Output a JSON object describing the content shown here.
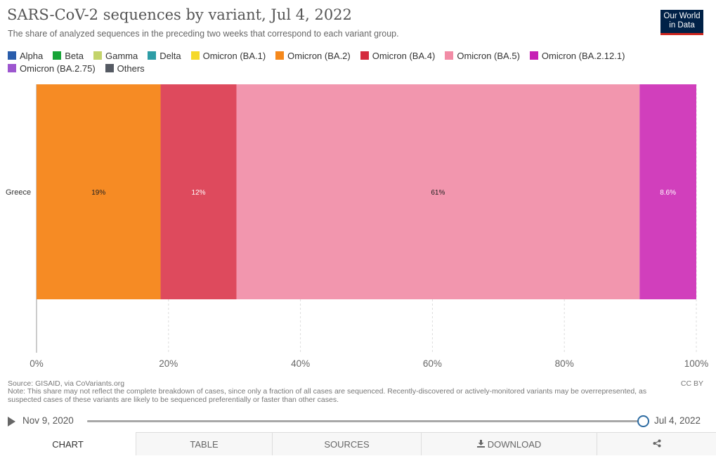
{
  "header": {
    "title": "SARS-CoV-2 sequences by variant, Jul 4, 2022",
    "subtitle": "The share of analyzed sequences in the preceding two weeks that correspond to each variant group.",
    "logo_line1": "Our World",
    "logo_line2": "in Data"
  },
  "legend": [
    {
      "label": "Alpha",
      "color": "#2a5dab"
    },
    {
      "label": "Beta",
      "color": "#17a437"
    },
    {
      "label": "Gamma",
      "color": "#c3d36a"
    },
    {
      "label": "Delta",
      "color": "#2d9da6"
    },
    {
      "label": "Omicron (BA.1)",
      "color": "#f5d92b"
    },
    {
      "label": "Omicron (BA.2)",
      "color": "#f5881b"
    },
    {
      "label": "Omicron (BA.4)",
      "color": "#d42a3d"
    },
    {
      "label": "Omicron (BA.5)",
      "color": "#f28ca6"
    },
    {
      "label": "Omicron (BA.2.12.1)",
      "color": "#c620b4"
    },
    {
      "label": "Omicron (BA.2.75)",
      "color": "#9d56cf"
    },
    {
      "label": "Others",
      "color": "#555a63"
    }
  ],
  "chart_data": {
    "type": "bar",
    "orientation": "horizontal",
    "stacked": true,
    "categories": [
      "Greece"
    ],
    "series": [
      {
        "name": "Omicron (BA.2)",
        "values": [
          18.8
        ],
        "label": "19%",
        "color": "#f68b24"
      },
      {
        "name": "Omicron (BA.4)",
        "values": [
          11.5
        ],
        "label": "12%",
        "color": "#de4a5d"
      },
      {
        "name": "Omicron (BA.5)",
        "values": [
          61.1
        ],
        "label": "61%",
        "color": "#f296ae"
      },
      {
        "name": "Omicron (BA.2.12.1)",
        "values": [
          8.6
        ],
        "label": "8.6%",
        "color": "#d13fbc"
      }
    ],
    "xlim": [
      0,
      100
    ],
    "xticks": [
      "0%",
      "20%",
      "40%",
      "60%",
      "80%",
      "100%"
    ],
    "xtick_values": [
      0,
      20,
      40,
      60,
      80,
      100
    ],
    "grid": true
  },
  "footer": {
    "source": "Source: GISAID, via CoVariants.org",
    "note": "Note: This share may not reflect the complete breakdown of cases, since only a fraction of all cases are sequenced. Recently-discovered or actively-monitored variants may be overrepresented, as suspected cases of these variants are likely to be sequenced preferentially or faster than other cases.",
    "license": "CC BY"
  },
  "timeline": {
    "start_label": "Nov 9, 2020",
    "end_label": "Jul 4, 2022",
    "position": 1.0,
    "play_icon": "play-icon"
  },
  "tabs": [
    {
      "label": "Chart",
      "active": true
    },
    {
      "label": "Table",
      "active": false
    },
    {
      "label": "Sources",
      "active": false
    },
    {
      "label": "Download",
      "active": false,
      "icon": "download-icon"
    },
    {
      "label": "",
      "active": false,
      "icon": "share-icon"
    }
  ]
}
